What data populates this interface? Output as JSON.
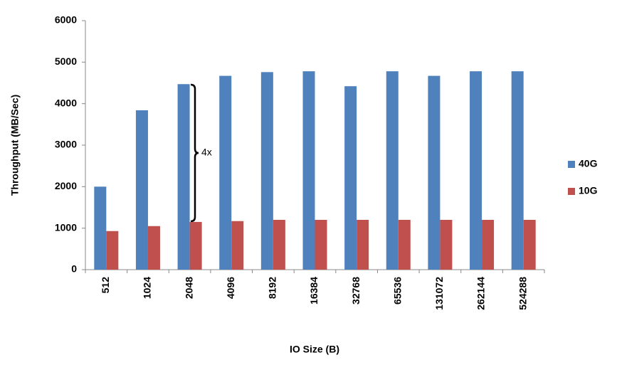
{
  "chart_data": {
    "type": "bar",
    "x_label": "IO Size (B)",
    "y_label": "Throughput (MB/Sec)",
    "categories": [
      "512",
      "1024",
      "2048",
      "4096",
      "8192",
      "16384",
      "32768",
      "65536",
      "131072",
      "262144",
      "524288"
    ],
    "series": [
      {
        "name": "40G",
        "color": "#4f81bd",
        "values": [
          2000,
          3840,
          4470,
          4670,
          4760,
          4780,
          4420,
          4780,
          4670,
          4780,
          4780
        ]
      },
      {
        "name": "10G",
        "color": "#c0504d",
        "values": [
          930,
          1050,
          1150,
          1170,
          1200,
          1200,
          1200,
          1200,
          1200,
          1200,
          1200
        ]
      }
    ],
    "annotation": "4x",
    "ylim": [
      0,
      6000
    ],
    "yticks": [
      0,
      1000,
      2000,
      3000,
      4000,
      5000,
      6000
    ],
    "grid": false,
    "legend": "right"
  }
}
